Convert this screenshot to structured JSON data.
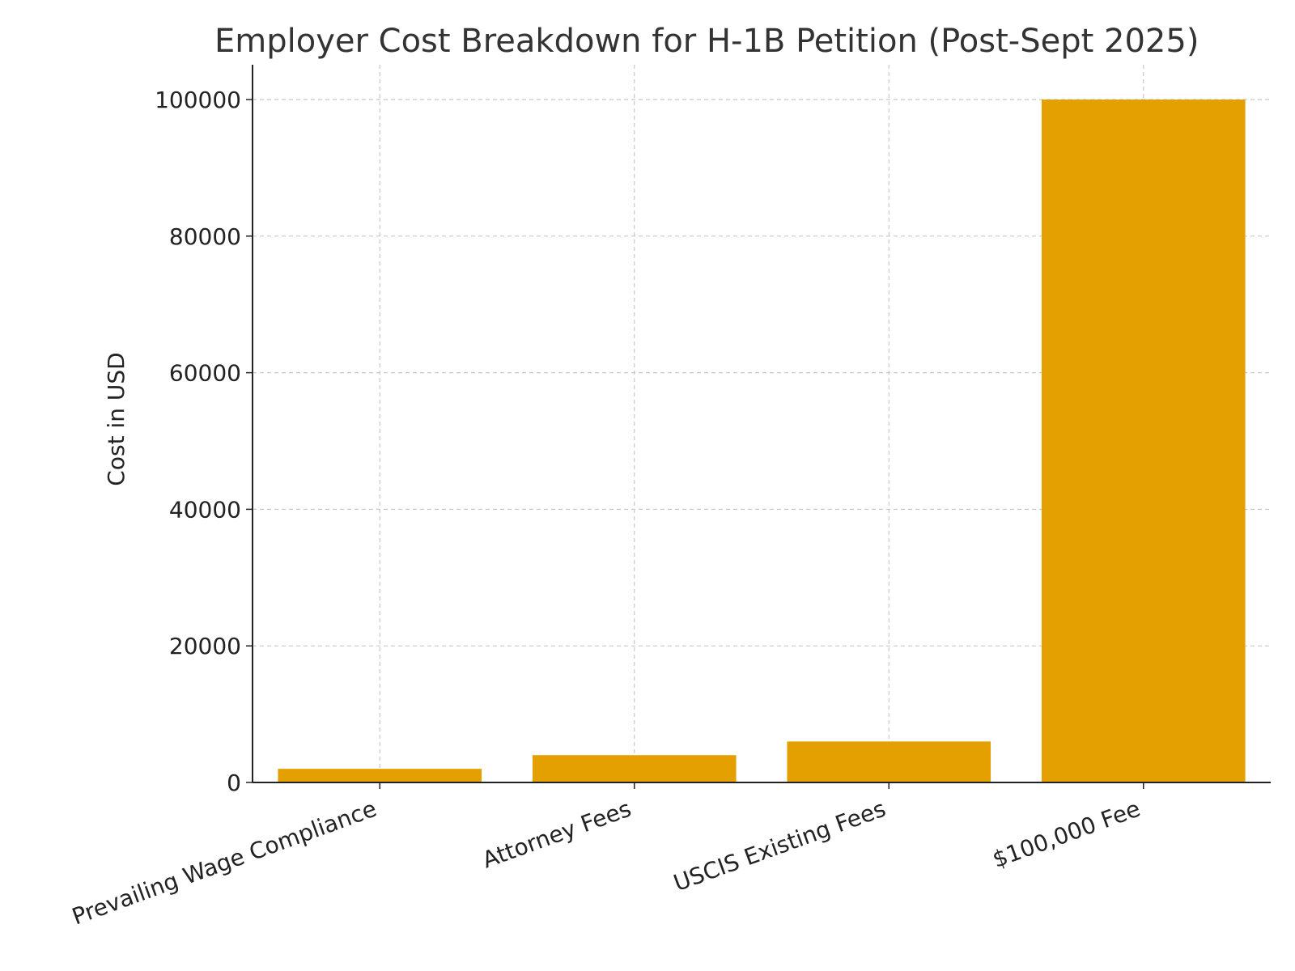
{
  "chart_data": {
    "type": "bar",
    "title": "Employer Cost Breakdown for H-1B Petition (Post-Sept 2025)",
    "xlabel": "",
    "ylabel": "Cost in USD",
    "categories": [
      "Prevailing Wage Compliance",
      "Attorney Fees",
      "USCIS Existing Fees",
      "$100,000 Fee"
    ],
    "values": [
      2000,
      4000,
      6000,
      100000
    ],
    "ylim": [
      0,
      105000
    ],
    "yticks": [
      0,
      20000,
      40000,
      60000,
      80000,
      100000
    ],
    "grid": true,
    "bar_color": "#E3A000"
  }
}
